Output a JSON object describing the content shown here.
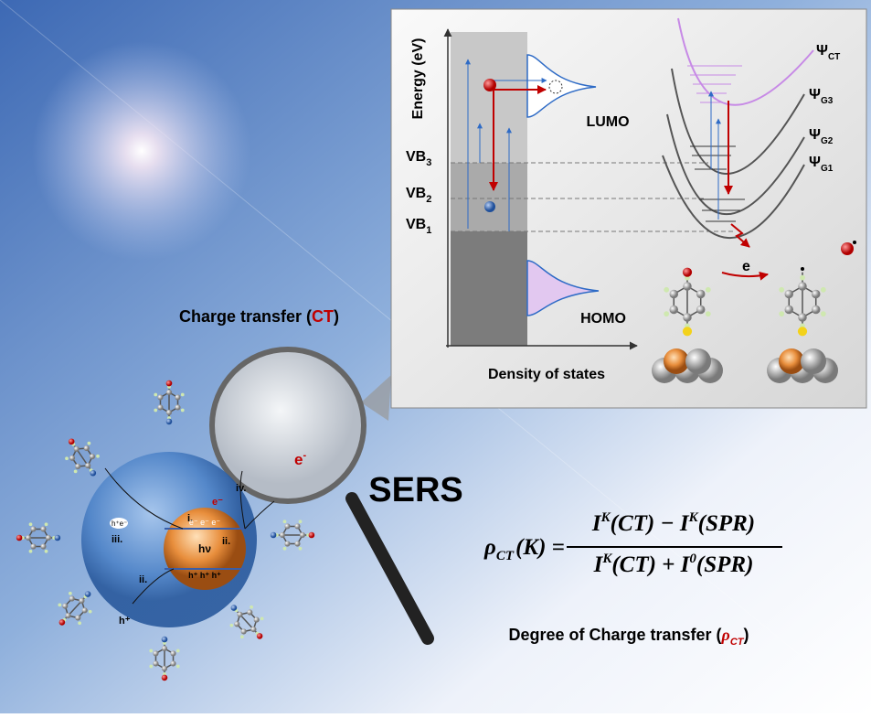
{
  "inset": {
    "y_axis_label": "Energy (eV)",
    "x_axis_label": "Density of states",
    "levels": [
      {
        "main": "VB",
        "sub": "3"
      },
      {
        "main": "VB",
        "sub": "2"
      },
      {
        "main": "VB",
        "sub": "1"
      }
    ],
    "lumo": "LUMO",
    "homo": "HOMO",
    "states": [
      {
        "main": "Ψ",
        "sub": "CT"
      },
      {
        "main": "Ψ",
        "sub": "G3"
      },
      {
        "main": "Ψ",
        "sub": "G2"
      },
      {
        "main": "Ψ",
        "sub": "G1"
      }
    ],
    "electron": "e"
  },
  "magnifier": {
    "title": [
      "Charge transfer (",
      "CT",
      ")"
    ],
    "electron": {
      "base": "e",
      "sup": "-"
    }
  },
  "nanoparticle": {
    "steps": [
      "i.",
      "ii.",
      "ii.",
      "iii.",
      "iv."
    ],
    "photon": "hν",
    "electrons": "e⁻ e⁻ e⁻",
    "holes": "h⁺ h⁺ h⁺",
    "pair": "h⁺e⁻",
    "free_electron": "e⁻",
    "free_hole": "h⁺"
  },
  "sers": "SERS",
  "formula": {
    "lhs": [
      "ρ",
      "CT",
      "(K) ="
    ],
    "numerator": [
      {
        "base": "I",
        "sup": "K",
        "rest": "(CT) − "
      },
      {
        "base": "I",
        "sup": "K",
        "rest": "(SPR)"
      }
    ],
    "denominator": [
      {
        "base": "I",
        "sup": "K",
        "rest": "(CT) + "
      },
      {
        "base": "I",
        "sup": "0",
        "rest": "(SPR)"
      }
    ]
  },
  "caption": [
    "Degree of Charge transfer (",
    "ρ",
    "CT",
    ")"
  ]
}
